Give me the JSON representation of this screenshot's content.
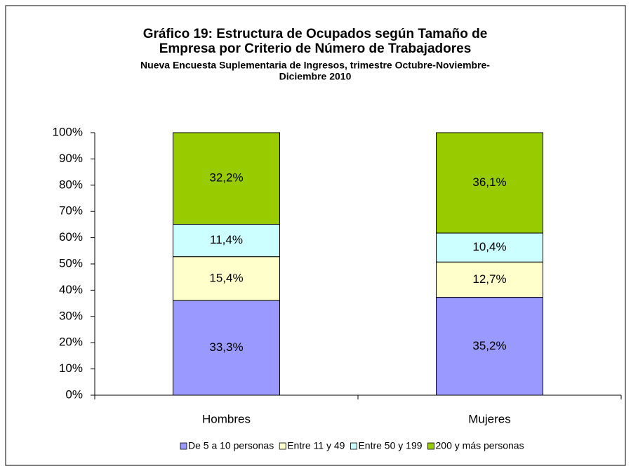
{
  "chart_data": {
    "type": "bar",
    "stack": "percent",
    "title": [
      "Gráfico 19: Estructura de Ocupados según Tamaño de",
      "Empresa por Criterio de Número de Trabajadores"
    ],
    "subtitle": [
      "Nueva Encuesta Suplementaria de Ingresos, trimestre Octubre-Noviembre-",
      "Diciembre 2010"
    ],
    "categories": [
      "Hombres",
      "Mujeres"
    ],
    "series": [
      {
        "name": "De 5 a 10 personas",
        "color": "#9999ff",
        "values": [
          33.3,
          35.2
        ],
        "value_labels": [
          "33,3%",
          "35,2%"
        ]
      },
      {
        "name": "Entre 11 y 49",
        "color": "#ffffcc",
        "values": [
          15.4,
          12.7
        ],
        "value_labels": [
          "15,4%",
          "12,7%"
        ]
      },
      {
        "name": "Entre 50 y 199",
        "color": "#ccffff",
        "values": [
          11.4,
          10.4
        ],
        "value_labels": [
          "11,4%",
          "10,4%"
        ]
      },
      {
        "name": "200 y más personas",
        "color": "#99cc00",
        "values": [
          32.2,
          36.1
        ],
        "value_labels": [
          "32,2%",
          "36,1%"
        ]
      }
    ],
    "ylim": [
      0,
      100
    ],
    "yticks": [
      {
        "value": 0,
        "label": "0%"
      },
      {
        "value": 10,
        "label": "10%"
      },
      {
        "value": 20,
        "label": "20%"
      },
      {
        "value": 30,
        "label": "30%"
      },
      {
        "value": 40,
        "label": "40%"
      },
      {
        "value": 50,
        "label": "50%"
      },
      {
        "value": 60,
        "label": "60%"
      },
      {
        "value": 70,
        "label": "70%"
      },
      {
        "value": 80,
        "label": "80%"
      },
      {
        "value": 90,
        "label": "90%"
      },
      {
        "value": 100,
        "label": "100%"
      }
    ],
    "grid": false,
    "legend": "bottom"
  }
}
